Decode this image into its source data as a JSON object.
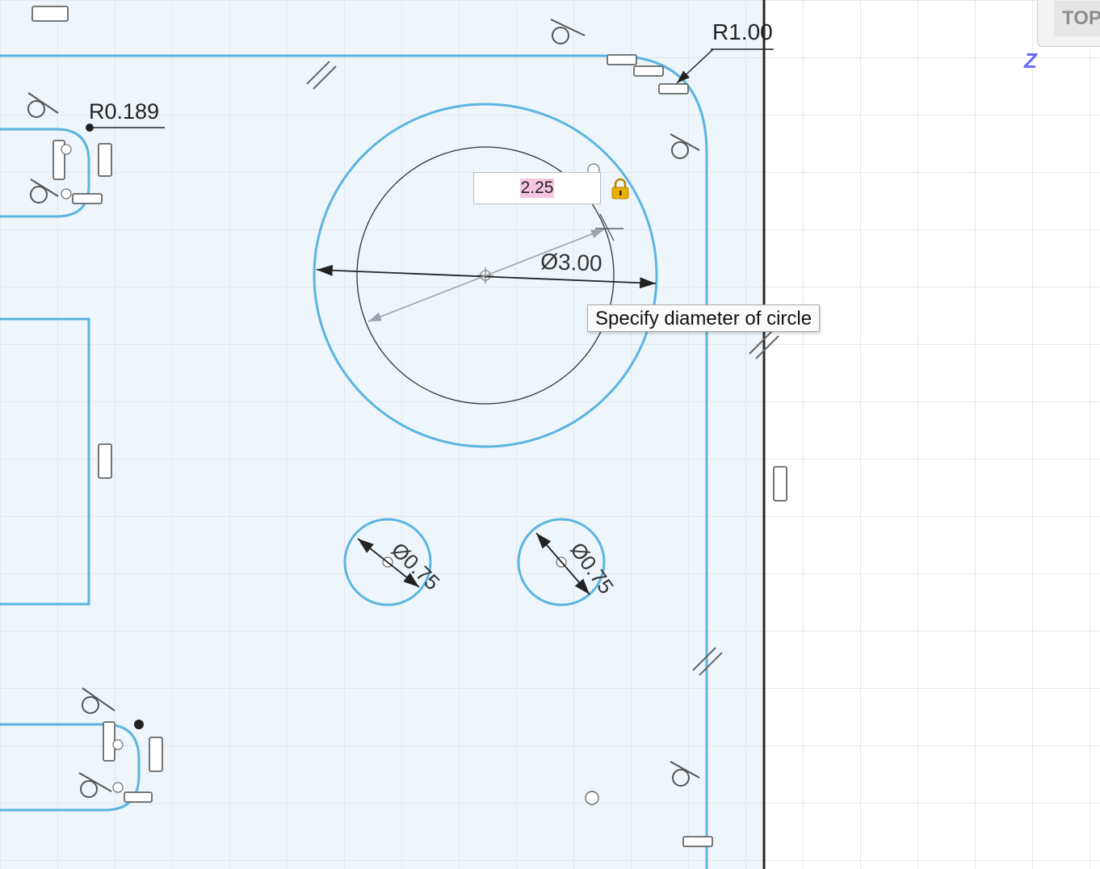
{
  "dimension_input": {
    "value": "2.25"
  },
  "tooltip": {
    "text": "Specify diameter of circle"
  },
  "viewcube": {
    "face_label": "TOP"
  },
  "axis": {
    "z_label": "Z"
  },
  "dimensions": {
    "corner_radius_top_right": "R1.00",
    "corner_radius_left": "R0.189",
    "main_circle_diameter": "Ø3.00",
    "small_hole_left_diameter": "Ø0.75",
    "small_hole_right_diameter": "Ø0.75"
  },
  "colors": {
    "sketch_profile": "#5bb5e0",
    "sketch_fill": "#ecf6fc",
    "grid": "#d9dfe4",
    "dimension_line": "#222222",
    "input_highlight": "#f6c6e0",
    "lock": "#e0a800"
  },
  "icons": {
    "lock": "lock-icon",
    "constraints": [
      "tangent-constraint-icon",
      "parallel-constraint-icon",
      "horizontal-constraint-icon",
      "vertical-constraint-icon"
    ]
  }
}
